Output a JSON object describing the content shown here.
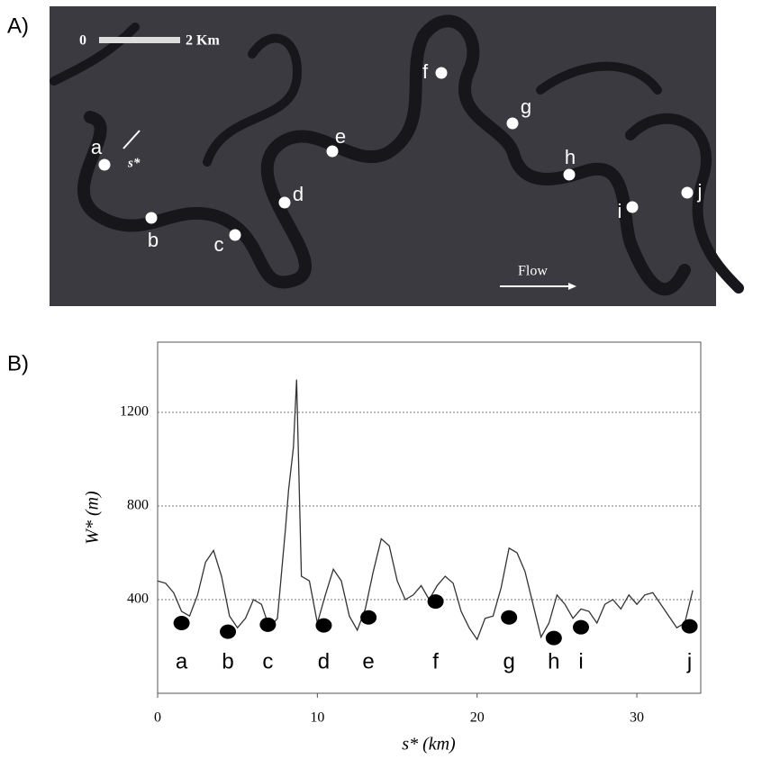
{
  "panel_a": {
    "label": "A)",
    "scale_start": "0",
    "scale_end": "2 Km",
    "arrow_label": "s*",
    "flow_label": "Flow",
    "points": [
      "a",
      "b",
      "c",
      "d",
      "e",
      "f",
      "g",
      "h",
      "i",
      "j"
    ]
  },
  "chart_data": {
    "type": "line",
    "panel_label": "B)",
    "xlabel": "s* (km)",
    "ylabel": "W* (m)",
    "x": [
      0,
      0.5,
      1,
      1.5,
      2,
      2.5,
      3,
      3.5,
      4,
      4.5,
      5,
      5.5,
      6,
      6.5,
      7,
      7.5,
      8,
      8.2,
      8.5,
      8.7,
      9,
      9.5,
      10,
      10.5,
      11,
      11.5,
      12,
      12.5,
      13,
      13.5,
      14,
      14.5,
      15,
      15.5,
      16,
      16.5,
      17,
      17.5,
      18,
      18.5,
      19,
      19.5,
      20,
      20.5,
      21,
      21.5,
      22,
      22.5,
      23,
      23.5,
      24,
      24.5,
      25,
      25.5,
      26,
      26.5,
      27,
      27.5,
      28,
      28.5,
      29,
      29.5,
      30,
      30.5,
      31,
      31.5,
      32,
      32.5,
      33,
      33.5
    ],
    "values": [
      480,
      470,
      430,
      350,
      330,
      420,
      560,
      610,
      500,
      330,
      280,
      320,
      400,
      380,
      280,
      320,
      700,
      870,
      1050,
      1340,
      500,
      480,
      300,
      420,
      530,
      480,
      330,
      270,
      360,
      520,
      660,
      630,
      480,
      400,
      420,
      460,
      400,
      460,
      500,
      470,
      350,
      280,
      230,
      320,
      330,
      450,
      620,
      600,
      520,
      380,
      240,
      300,
      420,
      380,
      320,
      360,
      350,
      300,
      380,
      400,
      360,
      420,
      380,
      420,
      430,
      380,
      330,
      280,
      300,
      440
    ],
    "color": "#333333",
    "markers": {
      "x": [
        1.5,
        4.4,
        6.9,
        10.4,
        13.2,
        17.4,
        22.0,
        24.8,
        26.5,
        33.3
      ],
      "values": [
        300,
        263,
        293,
        290,
        324,
        392,
        324,
        236,
        282,
        286
      ],
      "labels": [
        "a",
        "b",
        "c",
        "d",
        "e",
        "f",
        "g",
        "h",
        "i",
        "j"
      ],
      "color": "#000000"
    },
    "xlim": [
      0,
      34
    ],
    "ylim": [
      0,
      1500
    ],
    "xticks": [
      0,
      10,
      20,
      30
    ],
    "yticks": [
      400,
      800,
      1200
    ],
    "grid": true
  }
}
